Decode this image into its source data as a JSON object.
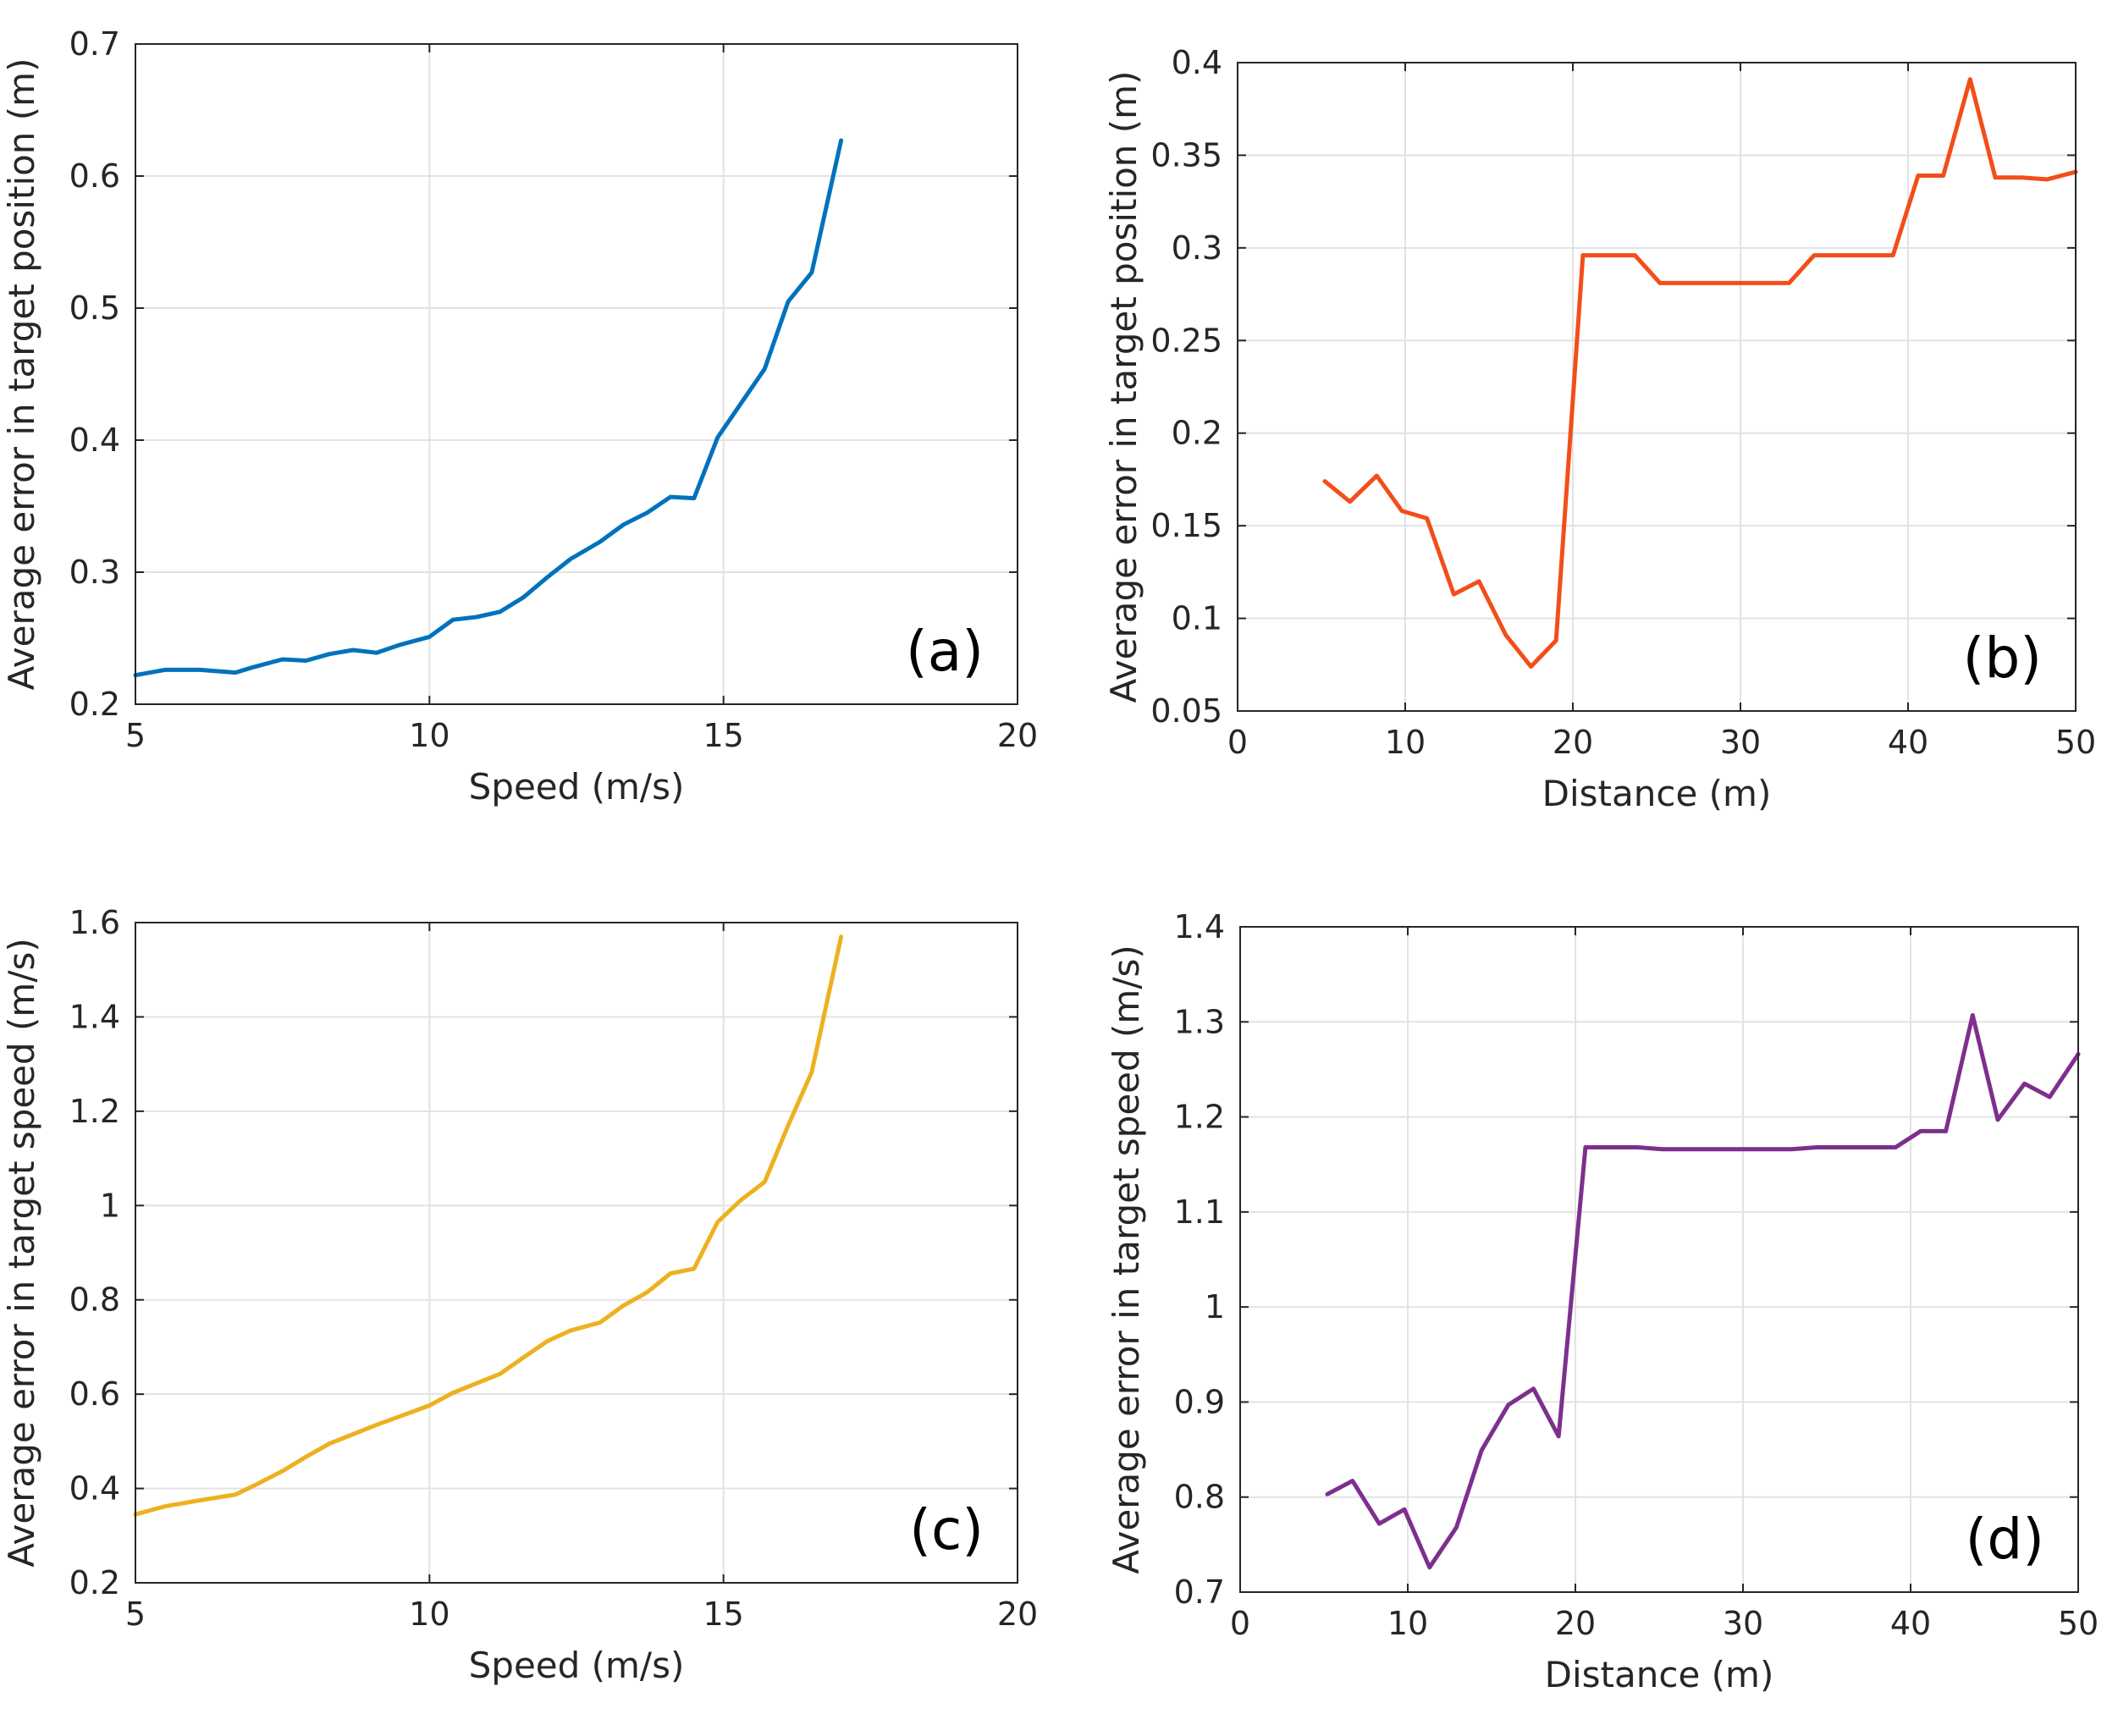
{
  "chart_data": [
    {
      "type": "line",
      "panel_label": "(a)",
      "xlabel": "Speed (m/s)",
      "ylabel": "Average error in target position (m)",
      "xlim": [
        5,
        20
      ],
      "ylim": [
        0.2,
        0.7
      ],
      "xticks": [
        5,
        10,
        15,
        20
      ],
      "xtick_labels": [
        "5",
        "10",
        "15",
        "20"
      ],
      "yticks": [
        0.2,
        0.3,
        0.4,
        0.5,
        0.6,
        0.7
      ],
      "ytick_labels": [
        "0.2",
        "0.3",
        "0.4",
        "0.5",
        "0.6",
        "0.7"
      ],
      "grid": true,
      "color": "#0072BD",
      "x": [
        5.0,
        5.5,
        6.1,
        6.7,
        7.0,
        7.5,
        7.9,
        8.3,
        8.7,
        9.1,
        9.5,
        10.0,
        10.4,
        10.8,
        11.2,
        11.6,
        12.0,
        12.4,
        12.9,
        13.3,
        13.7,
        14.1,
        14.5,
        14.9,
        15.3,
        15.7,
        16.1,
        16.5,
        17.0
      ],
      "y": [
        0.222,
        0.226,
        0.226,
        0.224,
        0.228,
        0.234,
        0.233,
        0.238,
        0.241,
        0.239,
        0.245,
        0.251,
        0.264,
        0.266,
        0.27,
        0.281,
        0.296,
        0.31,
        0.323,
        0.336,
        0.345,
        0.357,
        0.356,
        0.402,
        0.428,
        0.454,
        0.505,
        0.527,
        0.627
      ]
    },
    {
      "type": "line",
      "panel_label": "(b)",
      "xlabel": "Distance (m)",
      "ylabel": "Average error in target position (m)",
      "xlim": [
        0,
        50
      ],
      "ylim": [
        0.05,
        0.4
      ],
      "xticks": [
        0,
        10,
        20,
        30,
        40,
        50
      ],
      "xtick_labels": [
        "0",
        "10",
        "20",
        "30",
        "40",
        "50"
      ],
      "yticks": [
        0.05,
        0.1,
        0.15,
        0.2,
        0.25,
        0.3,
        0.35,
        0.4
      ],
      "ytick_labels": [
        "0.05",
        "0.1",
        "0.15",
        "0.2",
        "0.25",
        "0.3",
        "0.35",
        "0.4"
      ],
      "grid": true,
      "color": "#F24E1A",
      "x": [
        5.2,
        6.7,
        8.3,
        9.8,
        11.3,
        12.9,
        14.4,
        16.0,
        17.5,
        19.0,
        20.6,
        22.1,
        23.7,
        25.2,
        26.7,
        28.3,
        29.8,
        31.4,
        32.9,
        34.4,
        36.0,
        37.5,
        39.1,
        40.6,
        42.1,
        43.7,
        45.2,
        46.8,
        48.3,
        50.0
      ],
      "y": [
        0.174,
        0.163,
        0.177,
        0.158,
        0.154,
        0.113,
        0.12,
        0.091,
        0.074,
        0.088,
        0.296,
        0.296,
        0.296,
        0.281,
        0.281,
        0.281,
        0.281,
        0.281,
        0.281,
        0.296,
        0.296,
        0.296,
        0.296,
        0.339,
        0.339,
        0.391,
        0.338,
        0.338,
        0.337,
        0.341
      ]
    },
    {
      "type": "line",
      "panel_label": "(c)",
      "xlabel": "Speed (m/s)",
      "ylabel": "Average error in target speed (m/s)",
      "xlim": [
        5,
        20
      ],
      "ylim": [
        0.2,
        1.6
      ],
      "xticks": [
        5,
        10,
        15,
        20
      ],
      "xtick_labels": [
        "5",
        "10",
        "15",
        "20"
      ],
      "yticks": [
        0.2,
        0.4,
        0.6,
        0.8,
        1.0,
        1.2,
        1.4,
        1.6
      ],
      "ytick_labels": [
        "0.2",
        "0.4",
        "0.6",
        "0.8",
        "1",
        "1.2",
        "1.4",
        "1.6"
      ],
      "grid": true,
      "color": "#EDB120",
      "x": [
        5.0,
        5.5,
        6.1,
        6.7,
        7.0,
        7.5,
        7.9,
        8.3,
        8.7,
        9.1,
        9.5,
        10.0,
        10.4,
        10.8,
        11.2,
        11.6,
        12.0,
        12.4,
        12.9,
        13.3,
        13.7,
        14.1,
        14.5,
        14.9,
        15.3,
        15.7,
        16.1,
        16.5,
        17.0
      ],
      "y": [
        0.345,
        0.362,
        0.375,
        0.387,
        0.405,
        0.437,
        0.467,
        0.495,
        0.515,
        0.535,
        0.553,
        0.576,
        0.603,
        0.623,
        0.643,
        0.678,
        0.712,
        0.735,
        0.752,
        0.788,
        0.816,
        0.856,
        0.866,
        0.965,
        1.012,
        1.05,
        1.17,
        1.283,
        1.57
      ]
    },
    {
      "type": "line",
      "panel_label": "(d)",
      "xlabel": "Distance (m)",
      "ylabel": "Average error in target speed (m/s)",
      "xlim": [
        0,
        50
      ],
      "ylim": [
        0.7,
        1.4
      ],
      "xticks": [
        0,
        10,
        20,
        30,
        40,
        50
      ],
      "xtick_labels": [
        "0",
        "10",
        "20",
        "30",
        "40",
        "50"
      ],
      "yticks": [
        0.7,
        0.8,
        0.9,
        1.0,
        1.1,
        1.2,
        1.3,
        1.4
      ],
      "ytick_labels": [
        "0.7",
        "0.8",
        "0.9",
        "1",
        "1.1",
        "1.2",
        "1.3",
        "1.4"
      ],
      "grid": true,
      "color": "#7E2F8E",
      "x": [
        5.2,
        6.7,
        8.3,
        9.8,
        11.3,
        12.9,
        14.4,
        16.0,
        17.5,
        19.0,
        20.6,
        22.1,
        23.7,
        25.2,
        26.7,
        28.3,
        29.8,
        31.4,
        32.9,
        34.4,
        36.0,
        37.5,
        39.1,
        40.6,
        42.1,
        43.7,
        45.2,
        46.8,
        48.3,
        50.0
      ],
      "y": [
        0.803,
        0.817,
        0.772,
        0.787,
        0.726,
        0.768,
        0.849,
        0.897,
        0.914,
        0.864,
        1.168,
        1.168,
        1.168,
        1.166,
        1.166,
        1.166,
        1.166,
        1.166,
        1.166,
        1.168,
        1.168,
        1.168,
        1.168,
        1.185,
        1.185,
        1.307,
        1.197,
        1.235,
        1.221,
        1.266
      ]
    }
  ]
}
